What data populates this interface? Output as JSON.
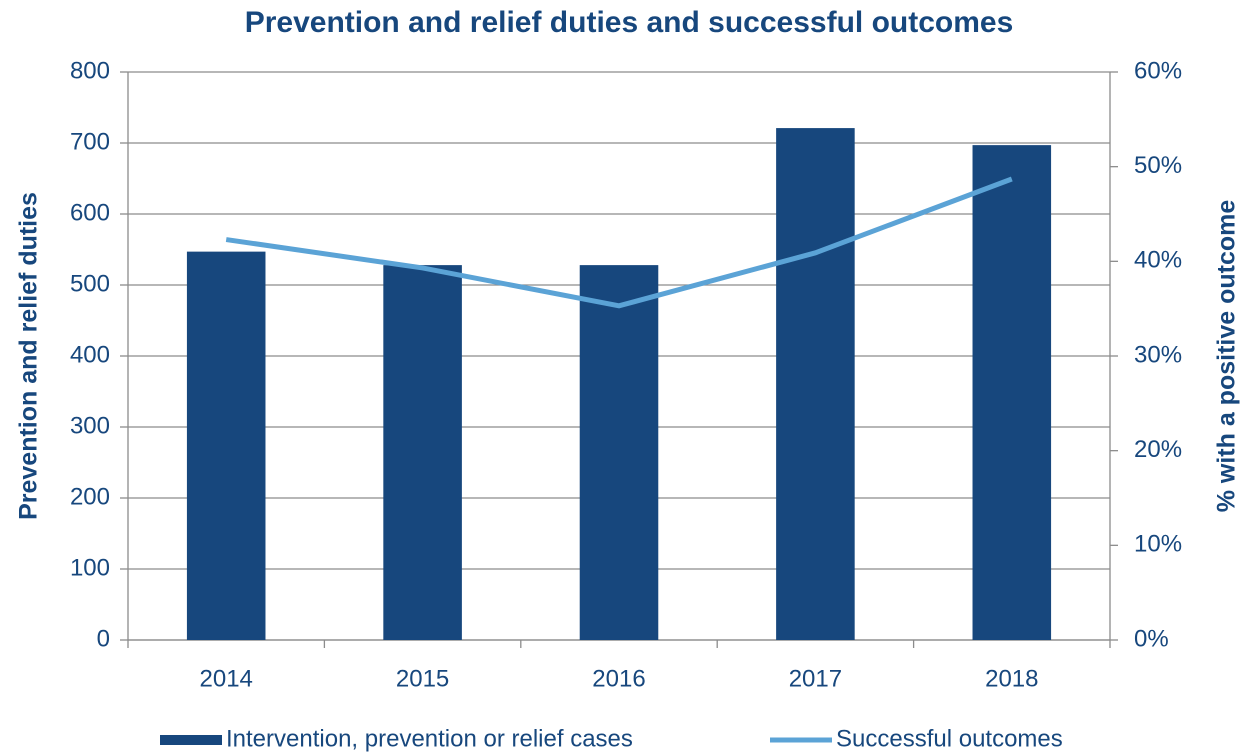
{
  "chart_data": {
    "type": "bar",
    "title": "Prevention and relief duties and successful outcomes",
    "ylabel": "Prevention and relief duties",
    "y2label": "% with a positive outcome",
    "categories": [
      "2014",
      "2015",
      "2016",
      "2017",
      "2018"
    ],
    "series": [
      {
        "name": "Intervention, prevention or relief cases",
        "type": "bar",
        "color": "#17477d",
        "values": [
          547,
          528,
          528,
          721,
          697
        ]
      },
      {
        "name": "Successful outcomes",
        "type": "line",
        "color": "#5ba3d6",
        "axis": "y2",
        "values": [
          42.3,
          39.3,
          35.3,
          40.9,
          48.7
        ]
      }
    ],
    "ylim": [
      0,
      800
    ],
    "yticks": [
      0,
      100,
      200,
      300,
      400,
      500,
      600,
      700,
      800
    ],
    "y2lim": [
      0,
      60
    ],
    "y2ticks": [
      {
        "value": 0,
        "label": "0%"
      },
      {
        "value": 10,
        "label": "10%"
      },
      {
        "value": 20,
        "label": "20%"
      },
      {
        "value": 30,
        "label": "30%"
      },
      {
        "value": 40,
        "label": "40%"
      },
      {
        "value": 50,
        "label": "50%"
      },
      {
        "value": 60,
        "label": "60%"
      }
    ],
    "grid": true,
    "legend": "bottom"
  }
}
